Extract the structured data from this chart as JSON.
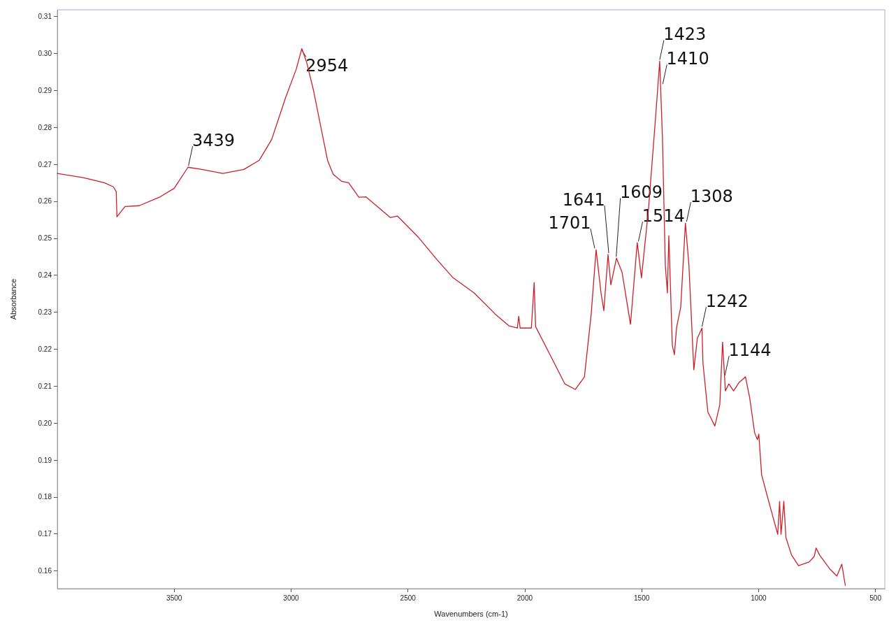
{
  "chart_data": {
    "type": "line",
    "xlabel": "Wavenumbers (cm-1)",
    "ylabel": "Absorbance",
    "xlim": [
      4000,
      460
    ],
    "xticks": [
      3500,
      3000,
      2500,
      2000,
      1500,
      1000,
      500
    ],
    "ylim": [
      0.1552,
      0.3118
    ],
    "yticks": [
      0.16,
      0.17,
      0.18,
      0.19,
      {
        "value": 0.2,
        "label": "0.20"
      },
      0.21,
      0.22,
      0.23,
      0.24,
      0.25,
      0.26,
      0.27,
      0.28,
      0.29,
      {
        "value": 0.3,
        "label": "0.30"
      },
      0.31
    ],
    "grid": false,
    "marker": "none",
    "line_style": "solid",
    "series": [
      {
        "color": "#cc1f2a",
        "x": [
          4000,
          3889,
          3799,
          3760,
          3748,
          3745,
          3710,
          3650,
          3560,
          3500,
          3441,
          3381,
          3292,
          3202,
          3136,
          3083,
          3023,
          2978,
          2954,
          2933,
          2904,
          2874,
          2844,
          2820,
          2784,
          2754,
          2710,
          2680,
          2575,
          2545,
          2456,
          2381,
          2307,
          2217,
          2127,
          2068,
          2032,
          2026,
          2020,
          1972,
          1960,
          1954,
          1889,
          1829,
          1784,
          1745,
          1716,
          1695,
          1674,
          1662,
          1644,
          1632,
          1608,
          1584,
          1548,
          1519,
          1501,
          1471,
          1441,
          1423,
          1411,
          1399,
          1390,
          1384,
          1378,
          1369,
          1360,
          1351,
          1333,
          1313,
          1298,
          1277,
          1262,
          1242,
          1238,
          1217,
          1187,
          1166,
          1154,
          1142,
          1127,
          1107,
          1083,
          1056,
          1038,
          1017,
          1005,
          999,
          987,
          963,
          939,
          918,
          910,
          904,
          892,
          883,
          859,
          829,
          784,
          762,
          754,
          739,
          695,
          665,
          644,
          629
        ],
        "values": [
          0.2675,
          0.2664,
          0.265,
          0.2639,
          0.2626,
          0.2558,
          0.2586,
          0.2588,
          0.2612,
          0.2635,
          0.2692,
          0.2686,
          0.2675,
          0.2686,
          0.2711,
          0.2767,
          0.2881,
          0.2957,
          0.3013,
          0.2975,
          0.29,
          0.2805,
          0.2711,
          0.2673,
          0.2654,
          0.265,
          0.2611,
          0.2612,
          0.2556,
          0.256,
          0.2503,
          0.2446,
          0.2393,
          0.2352,
          0.2295,
          0.2263,
          0.2257,
          0.2289,
          0.2257,
          0.2257,
          0.238,
          0.2261,
          0.2181,
          0.2106,
          0.2091,
          0.2125,
          0.2295,
          0.2469,
          0.2352,
          0.2304,
          0.2456,
          0.2374,
          0.2446,
          0.2408,
          0.2267,
          0.2488,
          0.2393,
          0.2578,
          0.2824,
          0.2979,
          0.2767,
          0.2427,
          0.2352,
          0.2507,
          0.2389,
          0.221,
          0.2185,
          0.2257,
          0.2314,
          0.2541,
          0.2427,
          0.2144,
          0.2229,
          0.2257,
          0.2163,
          0.203,
          0.1992,
          0.2049,
          0.2219,
          0.2087,
          0.2106,
          0.2087,
          0.211,
          0.2125,
          0.2068,
          0.1974,
          0.1955,
          0.197,
          0.186,
          0.1803,
          0.1747,
          0.1699,
          0.1788,
          0.1699,
          0.1788,
          0.169,
          0.1643,
          0.1614,
          0.1624,
          0.1639,
          0.1662,
          0.1643,
          0.1605,
          0.1586,
          0.1618,
          0.1561
        ]
      }
    ],
    "annotations": [
      {
        "text": "3439",
        "x": 3439,
        "y": 0.2692
      },
      {
        "text": "2954",
        "x": 2954,
        "y": 0.3013
      },
      {
        "text": "1701",
        "x": 1701,
        "y": 0.2469
      },
      {
        "text": "1641",
        "x": 1641,
        "y": 0.2456
      },
      {
        "text": "1609",
        "x": 1609,
        "y": 0.2446
      },
      {
        "text": "1514",
        "x": 1514,
        "y": 0.2488
      },
      {
        "text": "1423",
        "x": 1423,
        "y": 0.2979
      },
      {
        "text": "1410",
        "x": 1410,
        "y": 0.2913
      },
      {
        "text": "1308",
        "x": 1308,
        "y": 0.2541
      },
      {
        "text": "1242",
        "x": 1242,
        "y": 0.2257
      },
      {
        "text": "1144",
        "x": 1144,
        "y": 0.2125
      }
    ]
  }
}
